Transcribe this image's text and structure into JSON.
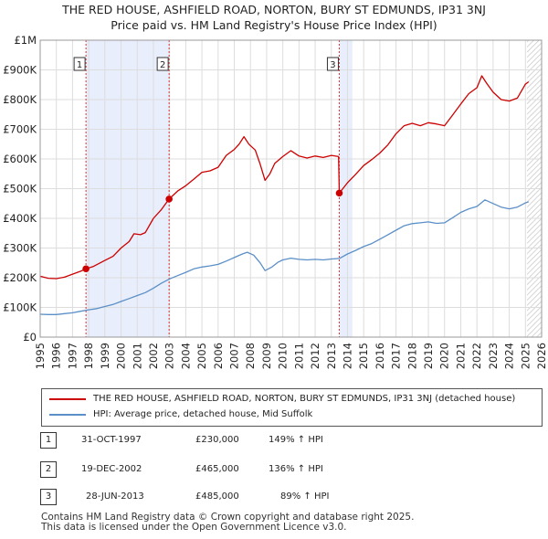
{
  "chart_data": {
    "type": "line",
    "title": "THE RED HOUSE, ASHFIELD ROAD, NORTON, BURY ST EDMUNDS, IP31 3NJ",
    "subtitle": "Price paid vs. HM Land Registry's House Price Index (HPI)",
    "xlim": [
      1995,
      2026
    ],
    "ylim": [
      0,
      1000000
    ],
    "x_ticks": [
      "1995",
      "1996",
      "1997",
      "1998",
      "1999",
      "2000",
      "2001",
      "2002",
      "2003",
      "2004",
      "2005",
      "2006",
      "2007",
      "2008",
      "2009",
      "2010",
      "2011",
      "2012",
      "2013",
      "2014",
      "2015",
      "2016",
      "2017",
      "2018",
      "2019",
      "2020",
      "2021",
      "2022",
      "2023",
      "2024",
      "2025",
      "2026"
    ],
    "y_ticks": [
      {
        "value": 0,
        "label": "£0"
      },
      {
        "value": 100000,
        "label": "£100K"
      },
      {
        "value": 200000,
        "label": "£200K"
      },
      {
        "value": 300000,
        "label": "£300K"
      },
      {
        "value": 400000,
        "label": "£400K"
      },
      {
        "value": 500000,
        "label": "£500K"
      },
      {
        "value": 600000,
        "label": "£600K"
      },
      {
        "value": 700000,
        "label": "£700K"
      },
      {
        "value": 800000,
        "label": "£800K"
      },
      {
        "value": 900000,
        "label": "£900K"
      },
      {
        "value": 1000000,
        "label": "£1M"
      }
    ],
    "shaded_periods": [
      [
        1997.83,
        2002.97
      ],
      [
        2013.49,
        2014.3
      ]
    ],
    "forecast_start": 2025.1,
    "series": [
      {
        "name": "THE RED HOUSE, ASHFIELD ROAD, NORTON, BURY ST EDMUNDS, IP31 3NJ (detached house)",
        "color": "#cc0000",
        "points": [
          [
            1995.0,
            205000
          ],
          [
            1995.5,
            198000
          ],
          [
            1996.0,
            197000
          ],
          [
            1996.5,
            202000
          ],
          [
            1997.0,
            212000
          ],
          [
            1997.5,
            222000
          ],
          [
            1997.83,
            230000
          ],
          [
            1998.3,
            238000
          ],
          [
            1999.0,
            258000
          ],
          [
            1999.5,
            272000
          ],
          [
            2000.0,
            300000
          ],
          [
            2000.5,
            322000
          ],
          [
            2000.8,
            348000
          ],
          [
            2001.2,
            345000
          ],
          [
            2001.5,
            352000
          ],
          [
            2002.0,
            400000
          ],
          [
            2002.5,
            430000
          ],
          [
            2002.97,
            465000
          ],
          [
            2003.5,
            492000
          ],
          [
            2004.0,
            510000
          ],
          [
            2004.5,
            532000
          ],
          [
            2005.0,
            555000
          ],
          [
            2005.5,
            560000
          ],
          [
            2006.0,
            572000
          ],
          [
            2006.5,
            612000
          ],
          [
            2007.0,
            632000
          ],
          [
            2007.3,
            650000
          ],
          [
            2007.6,
            675000
          ],
          [
            2007.9,
            650000
          ],
          [
            2008.3,
            630000
          ],
          [
            2008.6,
            582000
          ],
          [
            2008.9,
            528000
          ],
          [
            2009.2,
            550000
          ],
          [
            2009.5,
            585000
          ],
          [
            2010.0,
            608000
          ],
          [
            2010.5,
            628000
          ],
          [
            2011.0,
            610000
          ],
          [
            2011.5,
            603000
          ],
          [
            2012.0,
            610000
          ],
          [
            2012.5,
            605000
          ],
          [
            2013.0,
            612000
          ],
          [
            2013.45,
            608000
          ],
          [
            2013.49,
            485000
          ],
          [
            2014.0,
            520000
          ],
          [
            2014.5,
            548000
          ],
          [
            2015.0,
            578000
          ],
          [
            2015.5,
            598000
          ],
          [
            2016.0,
            620000
          ],
          [
            2016.5,
            648000
          ],
          [
            2017.0,
            685000
          ],
          [
            2017.5,
            712000
          ],
          [
            2018.0,
            720000
          ],
          [
            2018.5,
            712000
          ],
          [
            2019.0,
            722000
          ],
          [
            2019.5,
            718000
          ],
          [
            2020.0,
            712000
          ],
          [
            2020.5,
            748000
          ],
          [
            2021.0,
            785000
          ],
          [
            2021.5,
            820000
          ],
          [
            2022.0,
            840000
          ],
          [
            2022.3,
            880000
          ],
          [
            2022.6,
            855000
          ],
          [
            2023.0,
            825000
          ],
          [
            2023.5,
            800000
          ],
          [
            2024.0,
            795000
          ],
          [
            2024.5,
            805000
          ],
          [
            2025.0,
            852000
          ],
          [
            2025.2,
            860000
          ]
        ]
      },
      {
        "name": "HPI: Average price, detached house, Mid Suffolk",
        "color": "#5b8fc7",
        "points": [
          [
            1995.0,
            77000
          ],
          [
            1995.5,
            76000
          ],
          [
            1996.0,
            76000
          ],
          [
            1996.5,
            79000
          ],
          [
            1997.0,
            82000
          ],
          [
            1997.5,
            87000
          ],
          [
            1998.0,
            92000
          ],
          [
            1998.5,
            96000
          ],
          [
            1999.0,
            103000
          ],
          [
            1999.5,
            110000
          ],
          [
            2000.0,
            120000
          ],
          [
            2000.5,
            130000
          ],
          [
            2001.0,
            140000
          ],
          [
            2001.5,
            150000
          ],
          [
            2002.0,
            165000
          ],
          [
            2002.5,
            182000
          ],
          [
            2003.0,
            196000
          ],
          [
            2003.5,
            207000
          ],
          [
            2004.0,
            218000
          ],
          [
            2004.5,
            230000
          ],
          [
            2005.0,
            236000
          ],
          [
            2005.5,
            240000
          ],
          [
            2006.0,
            245000
          ],
          [
            2006.5,
            256000
          ],
          [
            2007.0,
            268000
          ],
          [
            2007.5,
            280000
          ],
          [
            2007.8,
            286000
          ],
          [
            2008.2,
            276000
          ],
          [
            2008.6,
            250000
          ],
          [
            2008.9,
            224000
          ],
          [
            2009.3,
            235000
          ],
          [
            2009.7,
            252000
          ],
          [
            2010.0,
            260000
          ],
          [
            2010.5,
            266000
          ],
          [
            2011.0,
            262000
          ],
          [
            2011.5,
            260000
          ],
          [
            2012.0,
            262000
          ],
          [
            2012.5,
            260000
          ],
          [
            2013.0,
            263000
          ],
          [
            2013.5,
            265000
          ],
          [
            2014.0,
            280000
          ],
          [
            2014.5,
            292000
          ],
          [
            2015.0,
            305000
          ],
          [
            2015.5,
            315000
          ],
          [
            2016.0,
            330000
          ],
          [
            2016.5,
            345000
          ],
          [
            2017.0,
            360000
          ],
          [
            2017.5,
            375000
          ],
          [
            2018.0,
            382000
          ],
          [
            2018.5,
            385000
          ],
          [
            2019.0,
            388000
          ],
          [
            2019.5,
            383000
          ],
          [
            2020.0,
            385000
          ],
          [
            2020.5,
            402000
          ],
          [
            2021.0,
            420000
          ],
          [
            2021.5,
            432000
          ],
          [
            2022.0,
            440000
          ],
          [
            2022.5,
            462000
          ],
          [
            2023.0,
            450000
          ],
          [
            2023.5,
            438000
          ],
          [
            2024.0,
            432000
          ],
          [
            2024.5,
            438000
          ],
          [
            2025.0,
            452000
          ],
          [
            2025.2,
            456000
          ]
        ]
      }
    ],
    "sales": [
      {
        "label": "1",
        "x": 1997.83,
        "value": 230000
      },
      {
        "label": "2",
        "x": 2002.97,
        "value": 465000
      },
      {
        "label": "3",
        "x": 2013.49,
        "value": 485000
      }
    ]
  },
  "legend": {
    "property": "THE RED HOUSE, ASHFIELD ROAD, NORTON, BURY ST EDMUNDS, IP31 3NJ (detached house)",
    "hpi": "HPI: Average price, detached house, Mid Suffolk"
  },
  "transactions": [
    {
      "num": "1",
      "date": "31-OCT-1997",
      "price": "£230,000",
      "hpi": "149% ↑ HPI"
    },
    {
      "num": "2",
      "date": "19-DEC-2002",
      "price": "£465,000",
      "hpi": "136% ↑ HPI"
    },
    {
      "num": "3",
      "date": "28-JUN-2013",
      "price": "£485,000",
      "hpi": "89% ↑ HPI"
    }
  ],
  "footer": {
    "line1": "Contains HM Land Registry data © Crown copyright and database right 2025.",
    "line2": "This data is licensed under the Open Government Licence v3.0."
  }
}
